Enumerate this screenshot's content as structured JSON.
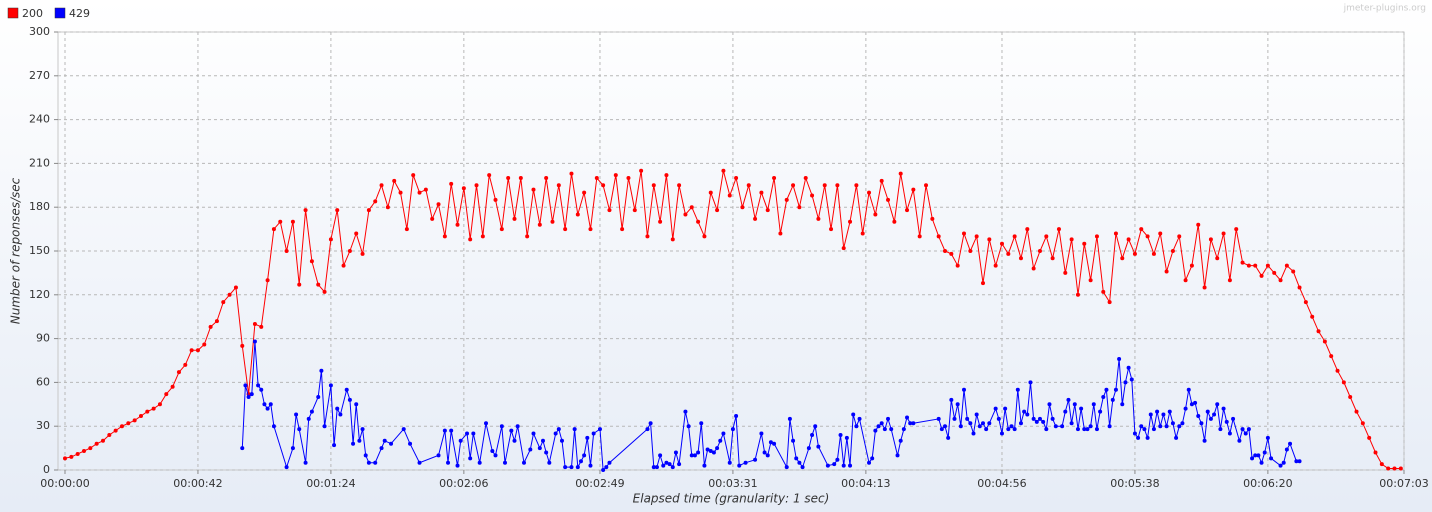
{
  "chart_data": {
    "type": "line",
    "watermark": "jmeter-plugins.org",
    "x_label": "Elapsed time (granularity: 1 sec)",
    "y_label": "Number of reponses/sec",
    "xlim": [
      0,
      423
    ],
    "ylim": [
      0,
      300
    ],
    "xticks": [
      {
        "value": 0,
        "label": "00:00:00"
      },
      {
        "value": 42,
        "label": "00:00:42"
      },
      {
        "value": 84,
        "label": "00:01:24"
      },
      {
        "value": 126,
        "label": "00:02:06"
      },
      {
        "value": 169,
        "label": "00:02:49"
      },
      {
        "value": 211,
        "label": "00:03:31"
      },
      {
        "value": 253,
        "label": "00:04:13"
      },
      {
        "value": 296,
        "label": "00:04:56"
      },
      {
        "value": 338,
        "label": "00:05:38"
      },
      {
        "value": 380,
        "label": "00:06:20"
      },
      {
        "value": 423,
        "label": "00:07:03"
      }
    ],
    "yticks": [
      0,
      30,
      60,
      90,
      120,
      150,
      180,
      210,
      240,
      270,
      300
    ],
    "grid": true,
    "series": [
      {
        "name": "200",
        "color": "#ff0000",
        "x": [
          0,
          2,
          4,
          6,
          8,
          10,
          12,
          14,
          16,
          18,
          20,
          22,
          24,
          26,
          28,
          30,
          32,
          34,
          36,
          38,
          40,
          42,
          44,
          46,
          48,
          50,
          52,
          54,
          56,
          58,
          60,
          62,
          64,
          66,
          68,
          70,
          72,
          74,
          76,
          78,
          80,
          82,
          84,
          86,
          88,
          90,
          92,
          94,
          96,
          98,
          100,
          102,
          104,
          106,
          108,
          110,
          112,
          114,
          116,
          118,
          120,
          122,
          124,
          126,
          128,
          130,
          132,
          134,
          136,
          138,
          140,
          142,
          144,
          146,
          148,
          150,
          152,
          154,
          156,
          158,
          160,
          162,
          164,
          166,
          168,
          170,
          172,
          174,
          176,
          178,
          180,
          182,
          184,
          186,
          188,
          190,
          192,
          194,
          196,
          198,
          200,
          202,
          204,
          206,
          208,
          210,
          212,
          214,
          216,
          218,
          220,
          222,
          224,
          226,
          228,
          230,
          232,
          234,
          236,
          238,
          240,
          242,
          244,
          246,
          248,
          250,
          252,
          254,
          256,
          258,
          260,
          262,
          264,
          266,
          268,
          270,
          272,
          274,
          276,
          278,
          280,
          282,
          284,
          286,
          288,
          290,
          292,
          294,
          296,
          298,
          300,
          302,
          304,
          306,
          308,
          310,
          312,
          314,
          316,
          318,
          320,
          322,
          324,
          326,
          328,
          330,
          332,
          334,
          336,
          338,
          340,
          342,
          344,
          346,
          348,
          350,
          352,
          354,
          356,
          358,
          360,
          362,
          364,
          366,
          368,
          370,
          372,
          374,
          376,
          378,
          380,
          382,
          384,
          386,
          388,
          390,
          392,
          394,
          396,
          398,
          400,
          402,
          404,
          406,
          408,
          410,
          412,
          414,
          416,
          418,
          420,
          422
        ],
        "values": [
          8,
          9,
          11,
          13,
          15,
          18,
          20,
          24,
          27,
          30,
          32,
          34,
          37,
          40,
          42,
          45,
          52,
          57,
          67,
          72,
          82,
          82,
          86,
          98,
          102,
          115,
          120,
          125,
          85,
          52,
          100,
          98,
          130,
          165,
          170,
          150,
          170,
          127,
          178,
          143,
          127,
          122,
          158,
          178,
          140,
          150,
          162,
          148,
          178,
          184,
          195,
          180,
          198,
          190,
          165,
          202,
          190,
          192,
          172,
          182,
          160,
          196,
          168,
          193,
          158,
          195,
          160,
          202,
          185,
          165,
          200,
          172,
          200,
          160,
          192,
          168,
          200,
          170,
          195,
          165,
          203,
          175,
          190,
          165,
          200,
          195,
          178,
          202,
          165,
          200,
          178,
          205,
          160,
          195,
          170,
          202,
          158,
          195,
          175,
          180,
          170,
          160,
          190,
          178,
          205,
          188,
          200,
          180,
          195,
          172,
          190,
          178,
          200,
          162,
          185,
          195,
          180,
          200,
          188,
          172,
          195,
          165,
          195,
          152,
          170,
          195,
          162,
          190,
          175,
          198,
          185,
          170,
          203,
          178,
          192,
          160,
          195,
          172,
          160,
          150,
          148,
          140,
          162,
          150,
          160,
          128,
          158,
          140,
          155,
          148,
          160,
          145,
          165,
          138,
          150,
          160,
          145,
          165,
          135,
          158,
          120,
          155,
          130,
          160,
          122,
          115,
          162,
          145,
          158,
          148,
          165,
          160,
          148,
          162,
          136,
          150,
          160,
          130,
          140,
          168,
          125,
          158,
          145,
          162,
          130,
          165,
          142,
          140,
          140,
          133,
          140,
          135,
          130,
          140,
          136,
          125,
          115,
          105,
          95,
          88,
          78,
          68,
          60,
          50,
          40,
          32,
          22,
          12,
          4,
          1,
          1,
          1
        ]
      },
      {
        "name": "429",
        "color": "#0000ff",
        "x": [
          56,
          57,
          58,
          59,
          60,
          61,
          62,
          63,
          64,
          65,
          66,
          70,
          72,
          73,
          74,
          76,
          77,
          78,
          80,
          81,
          82,
          84,
          85,
          86,
          87,
          89,
          90,
          91,
          92,
          93,
          94,
          95,
          96,
          98,
          100,
          101,
          103,
          107,
          109,
          112,
          118,
          120,
          121,
          122,
          124,
          125,
          127,
          128,
          129,
          131,
          133,
          135,
          136,
          138,
          139,
          141,
          142,
          143,
          145,
          147,
          148,
          150,
          151,
          152,
          153,
          155,
          156,
          157,
          158,
          160,
          161,
          162,
          163,
          164,
          165,
          166,
          167,
          169,
          170,
          171,
          172,
          184,
          185,
          186,
          187,
          188,
          189,
          190,
          191,
          192,
          193,
          194,
          196,
          197,
          198,
          199,
          200,
          201,
          202,
          203,
          204,
          205,
          206,
          207,
          208,
          210,
          211,
          212,
          213,
          215,
          218,
          220,
          221,
          222,
          223,
          224,
          228,
          229,
          230,
          231,
          232,
          233,
          235,
          236,
          237,
          238,
          241,
          243,
          244,
          245,
          246,
          247,
          248,
          249,
          250,
          251,
          254,
          255,
          256,
          257,
          258,
          259,
          260,
          261,
          263,
          264,
          265,
          266,
          267,
          268,
          276,
          277,
          278,
          279,
          280,
          281,
          282,
          283,
          284,
          285,
          286,
          287,
          288,
          289,
          290,
          291,
          292,
          294,
          295,
          296,
          297,
          298,
          299,
          300,
          301,
          302,
          303,
          304,
          305,
          306,
          307,
          308,
          309,
          310,
          311,
          312,
          313,
          315,
          316,
          317,
          318,
          319,
          320,
          321,
          322,
          323,
          324,
          325,
          326,
          327,
          328,
          329,
          330,
          331,
          332,
          333,
          334,
          335,
          336,
          337,
          338,
          339,
          340,
          341,
          342,
          343,
          344,
          345,
          346,
          347,
          348,
          349,
          350,
          351,
          352,
          353,
          354,
          355,
          356,
          357,
          358,
          359,
          360,
          361,
          362,
          363,
          364,
          365,
          366,
          367,
          368,
          369,
          371,
          372,
          373,
          374,
          375,
          376,
          377,
          378,
          379,
          380,
          381,
          384,
          385,
          386,
          387,
          389,
          390
        ],
        "values": [
          15,
          58,
          50,
          52,
          88,
          58,
          55,
          45,
          42,
          45,
          30,
          2,
          15,
          38,
          28,
          5,
          35,
          40,
          50,
          68,
          30,
          58,
          17,
          42,
          38,
          55,
          48,
          18,
          45,
          20,
          28,
          10,
          5,
          5,
          15,
          20,
          18,
          28,
          18,
          5,
          10,
          27,
          5,
          27,
          3,
          20,
          25,
          8,
          25,
          5,
          32,
          13,
          10,
          30,
          5,
          27,
          20,
          30,
          5,
          14,
          25,
          15,
          20,
          12,
          5,
          25,
          28,
          20,
          2,
          2,
          28,
          2,
          6,
          10,
          22,
          3,
          25,
          28,
          0,
          2,
          5,
          28,
          32,
          2,
          2,
          10,
          3,
          5,
          4,
          2,
          12,
          4,
          40,
          30,
          10,
          10,
          12,
          32,
          3,
          14,
          13,
          12,
          15,
          20,
          25,
          5,
          28,
          37,
          3,
          5,
          7,
          25,
          12,
          10,
          19,
          18,
          2,
          35,
          20,
          8,
          5,
          2,
          15,
          24,
          30,
          16,
          3,
          4,
          7,
          24,
          3,
          22,
          3,
          38,
          30,
          35,
          5,
          8,
          27,
          30,
          32,
          28,
          35,
          28,
          10,
          20,
          28,
          36,
          32,
          32,
          35,
          28,
          30,
          22,
          48,
          35,
          45,
          30,
          55,
          35,
          32,
          25,
          38,
          30,
          32,
          28,
          32,
          42,
          35,
          25,
          42,
          28,
          30,
          28,
          55,
          32,
          40,
          38,
          60,
          35,
          33,
          35,
          33,
          28,
          45,
          35,
          30,
          30,
          40,
          48,
          32,
          45,
          28,
          42,
          28,
          28,
          30,
          45,
          28,
          40,
          50,
          55,
          30,
          48,
          55,
          76,
          45,
          60,
          70,
          62,
          25,
          22,
          30,
          28,
          22,
          38,
          28,
          40,
          30,
          38,
          30,
          40,
          32,
          22,
          30,
          32,
          42,
          55,
          45,
          46,
          37,
          32,
          20,
          40,
          35,
          38,
          45,
          28,
          42,
          33,
          25,
          35,
          20,
          28,
          25,
          28,
          8,
          10,
          10,
          5,
          12,
          22,
          8,
          3,
          5,
          14,
          18,
          6,
          6
        ]
      }
    ]
  }
}
